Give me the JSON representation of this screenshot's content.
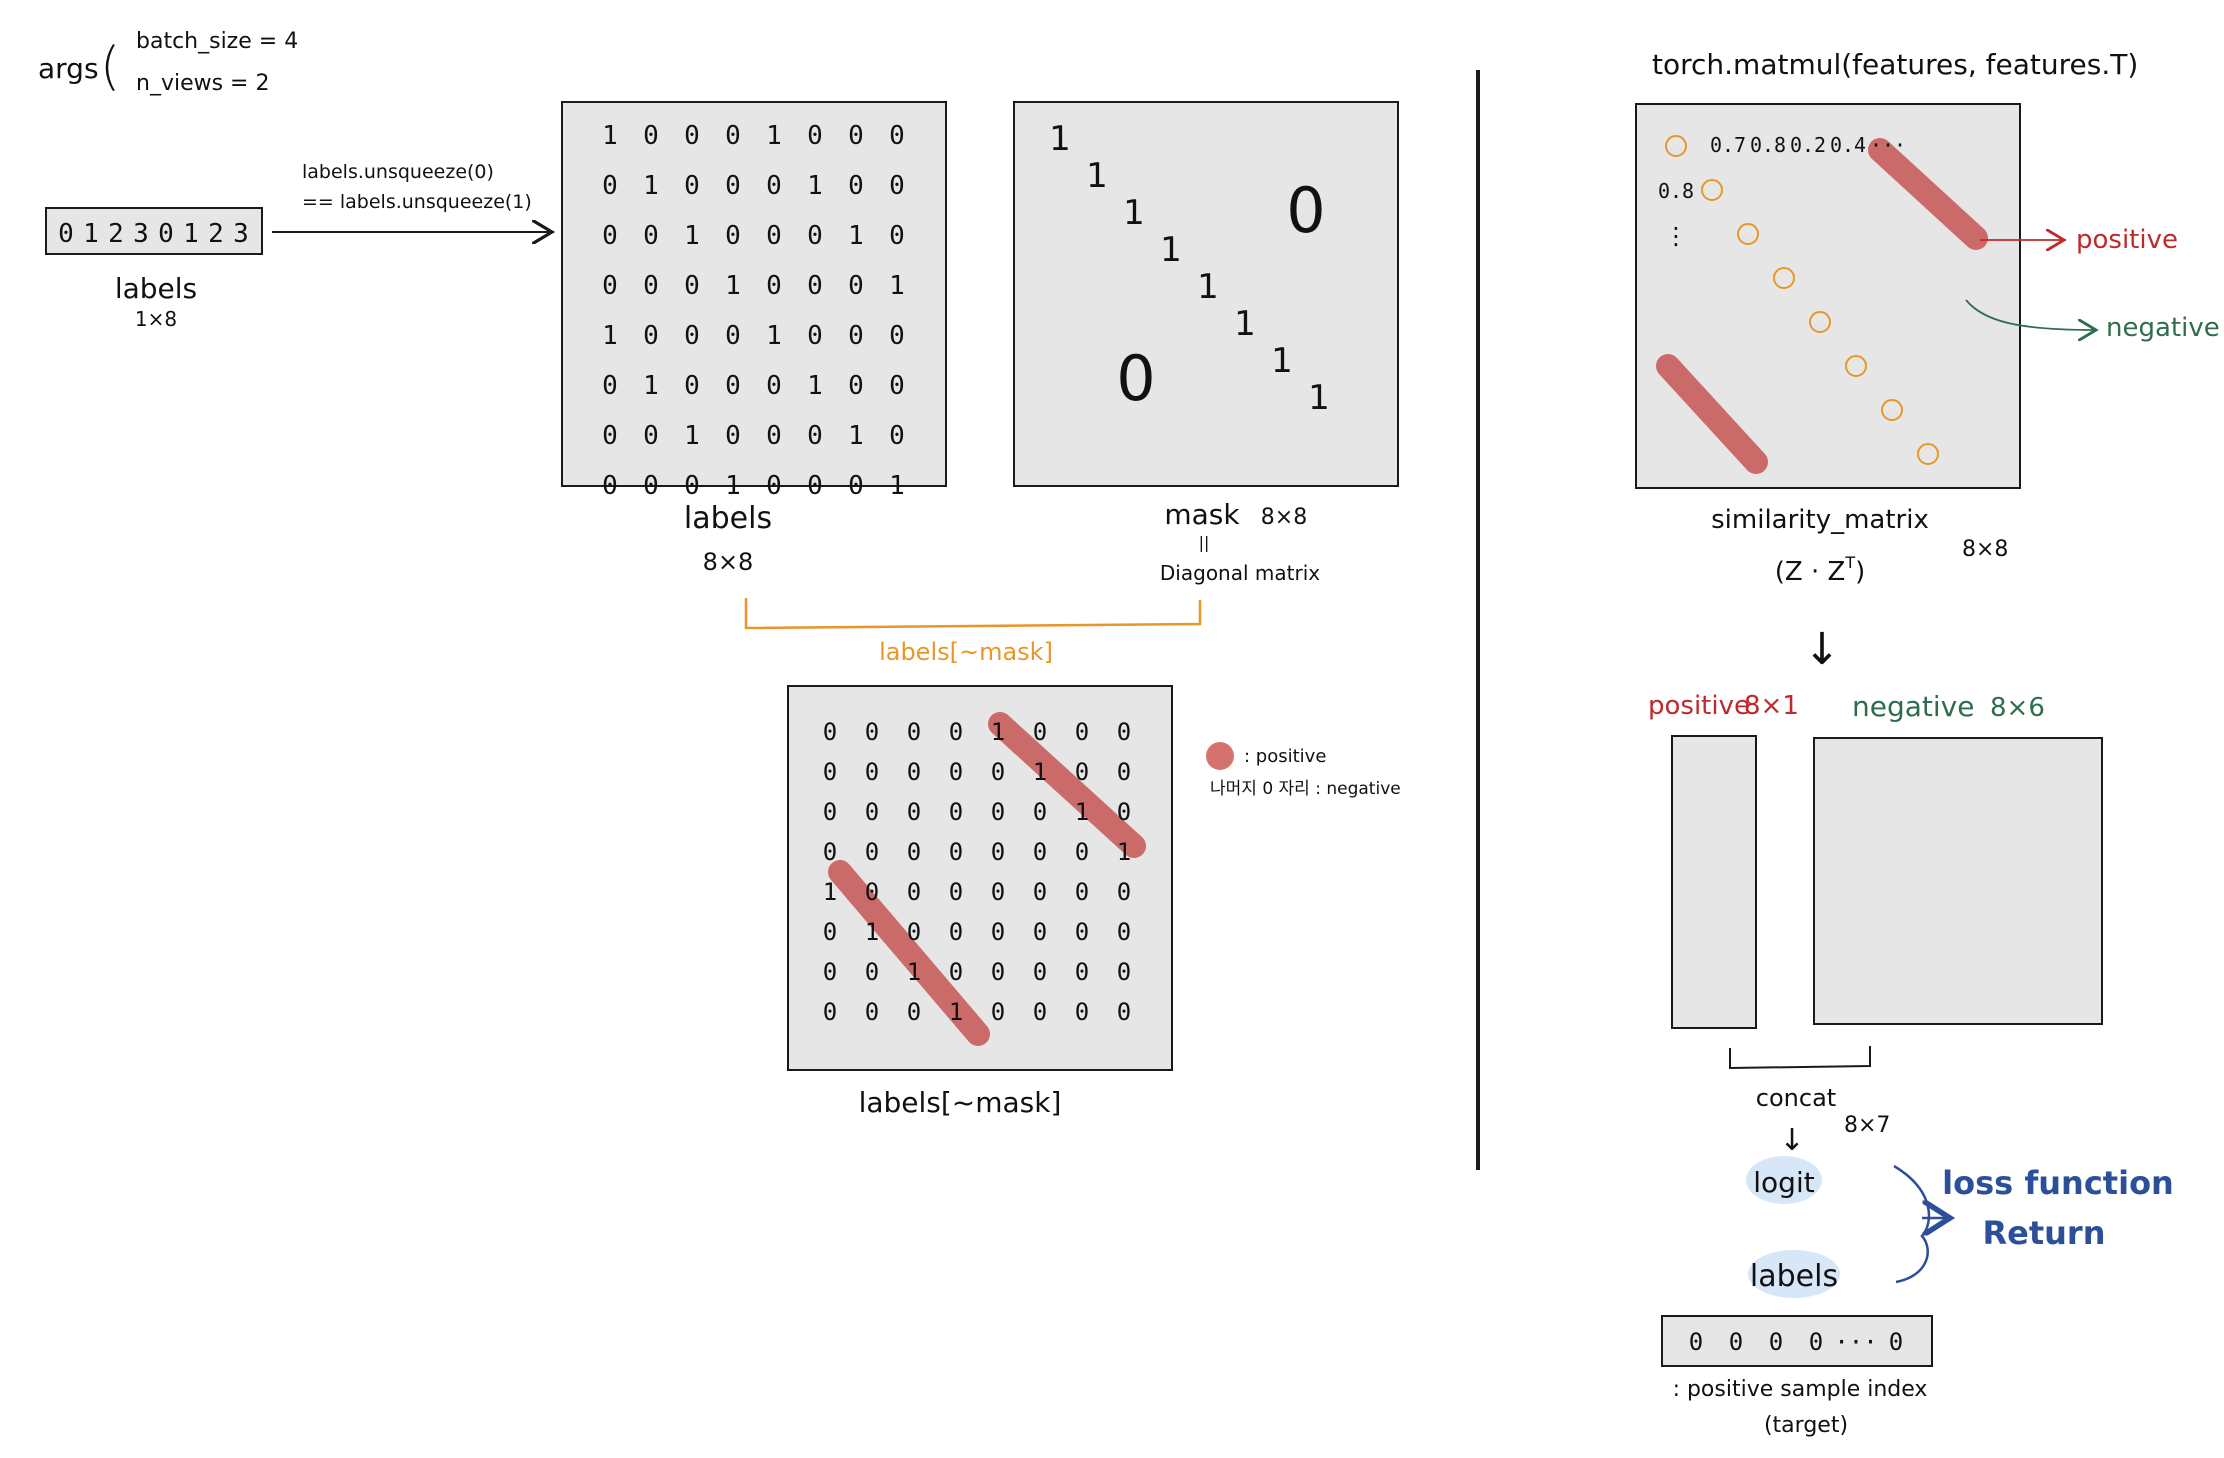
{
  "args": {
    "label": "args",
    "batch_size": "batch_size = 4",
    "n_views": "n_views = 2"
  },
  "labels_vector": {
    "values": [
      "0",
      "1",
      "2",
      "3",
      "0",
      "1",
      "2",
      "3"
    ],
    "title": "labels",
    "shape": "1×8"
  },
  "arrow_expr": {
    "line1": "labels.unsqueeze(0)",
    "line2": "== labels.unsqueeze(1)"
  },
  "labels_matrix": {
    "rows": [
      [
        "1",
        "0",
        "0",
        "0",
        "1",
        "0",
        "0",
        "0"
      ],
      [
        "0",
        "1",
        "0",
        "0",
        "0",
        "1",
        "0",
        "0"
      ],
      [
        "0",
        "0",
        "1",
        "0",
        "0",
        "0",
        "1",
        "0"
      ],
      [
        "0",
        "0",
        "0",
        "1",
        "0",
        "0",
        "0",
        "1"
      ],
      [
        "1",
        "0",
        "0",
        "0",
        "1",
        "0",
        "0",
        "0"
      ],
      [
        "0",
        "1",
        "0",
        "0",
        "0",
        "1",
        "0",
        "0"
      ],
      [
        "0",
        "0",
        "1",
        "0",
        "0",
        "0",
        "1",
        "0"
      ],
      [
        "0",
        "0",
        "0",
        "1",
        "0",
        "0",
        "0",
        "1"
      ]
    ],
    "title": "labels",
    "shape": "8×8"
  },
  "mask_matrix": {
    "diagonal": [
      "1",
      "1",
      "1",
      "1",
      "1",
      "1",
      "1",
      "1"
    ],
    "zero_mark": "0",
    "title": "mask",
    "shape": "8×8",
    "equals": "||",
    "subtitle": "Diagonal matrix"
  },
  "masked_labels": {
    "bracket_label": "labels[~mask]",
    "rows": [
      [
        "0",
        "0",
        "0",
        "0",
        "1",
        "0",
        "0",
        "0"
      ],
      [
        "0",
        "0",
        "0",
        "0",
        "0",
        "1",
        "0",
        "0"
      ],
      [
        "0",
        "0",
        "0",
        "0",
        "0",
        "0",
        "1",
        "0"
      ],
      [
        "0",
        "0",
        "0",
        "0",
        "0",
        "0",
        "0",
        "1"
      ],
      [
        "1",
        "0",
        "0",
        "0",
        "0",
        "0",
        "0",
        "0"
      ],
      [
        "0",
        "1",
        "0",
        "0",
        "0",
        "0",
        "0",
        "0"
      ],
      [
        "0",
        "0",
        "1",
        "0",
        "0",
        "0",
        "0",
        "0"
      ],
      [
        "0",
        "0",
        "0",
        "1",
        "0",
        "0",
        "0",
        "0"
      ]
    ],
    "title": "labels[~mask]",
    "legend_positive": ": positive",
    "legend_negative": "나머지 0 자리 : negative"
  },
  "similarity": {
    "header": "torch.matmul(features, features.T)",
    "row1": [
      "0.7",
      "0.8",
      "0.2",
      "0.4",
      "···"
    ],
    "row2": "0.8",
    "vdots": "⋮",
    "title": "similarity_matrix",
    "formula": "(Z · Z",
    "formula_sup": "T",
    "formula_end": ")",
    "shape": "8×8",
    "positive_label": "positive",
    "negative_label": "negative"
  },
  "split": {
    "arrow": "↓",
    "positive_label": "positive",
    "positive_shape": "8×1",
    "negative_label": "negative",
    "negative_shape": "8×6",
    "concat_label": "concat",
    "concat_shape": "8×7",
    "logit_label": "logit",
    "labels_label": "labels",
    "loss_line1": "loss function",
    "loss_line2": "Return",
    "target_values": [
      "0",
      "0",
      "0",
      "0",
      "···",
      "0"
    ],
    "target_caption": ": positive sample index",
    "target_caption2": "(target)"
  },
  "colors": {
    "box_fill": "#e6e6e6",
    "stroke": "#1a1a1a",
    "orange": "#e8962a",
    "highlight": "#c9615f",
    "red_text": "#c0282a",
    "green_text": "#2f6e4c",
    "blue_text": "#2c4f9a",
    "bubble": "#d7e7f7"
  }
}
